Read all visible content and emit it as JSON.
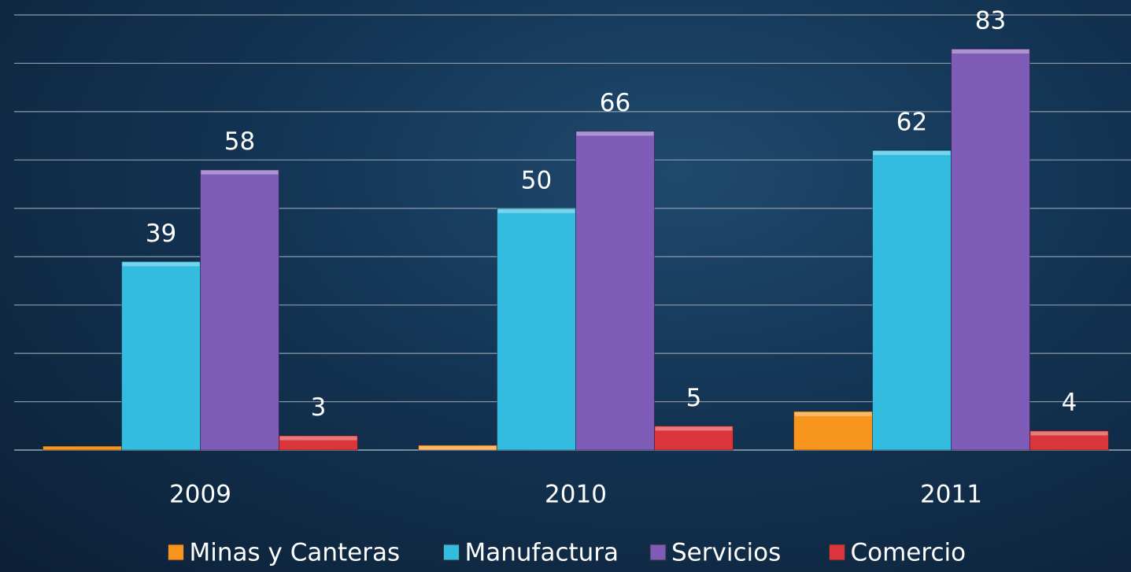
{
  "chart_data": {
    "type": "bar",
    "categories": [
      "2009",
      "2010",
      "2011"
    ],
    "series": [
      {
        "name": "Minas y Canteras",
        "color": "#f7941d",
        "values": [
          0.8,
          1,
          8
        ],
        "data_labels": false
      },
      {
        "name": "Manufactura",
        "color": "#33bbe0",
        "values": [
          39,
          50,
          62
        ],
        "data_labels": true
      },
      {
        "name": "Servicios",
        "color": "#7f5cb8",
        "values": [
          58,
          66,
          83
        ],
        "data_labels": true
      },
      {
        "name": "Comercio",
        "color": "#d9353a",
        "values": [
          3,
          5,
          4
        ],
        "data_labels": true
      }
    ],
    "ylim": [
      0,
      90
    ],
    "yticks": [
      0,
      10,
      20,
      30,
      40,
      50,
      60,
      70,
      80,
      90
    ],
    "grid": true,
    "legend": "bottom"
  }
}
